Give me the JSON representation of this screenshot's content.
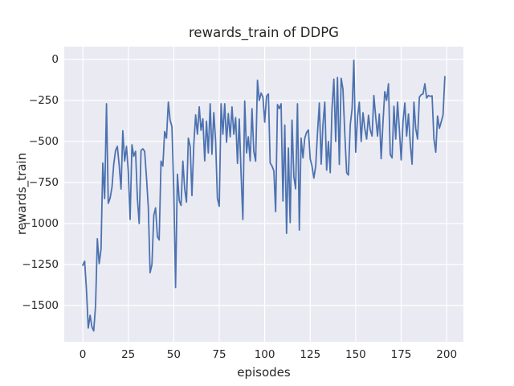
{
  "chart_data": {
    "type": "line",
    "title": "rewards_train of DDPG",
    "xlabel": "episodes",
    "ylabel": "rewards_train",
    "x_start": 0,
    "x_step": 1,
    "values": [
      -1255,
      -1230,
      -1400,
      -1637,
      -1559,
      -1630,
      -1655,
      -1500,
      -1093,
      -1245,
      -1157,
      -632,
      -848,
      -270,
      -877,
      -845,
      -780,
      -640,
      -555,
      -530,
      -645,
      -790,
      -435,
      -620,
      -530,
      -680,
      -975,
      -520,
      -590,
      -560,
      -850,
      -1000,
      -555,
      -545,
      -560,
      -720,
      -905,
      -1300,
      -1250,
      -950,
      -905,
      -1080,
      -1100,
      -620,
      -650,
      -440,
      -480,
      -260,
      -370,
      -410,
      -800,
      -1390,
      -700,
      -860,
      -890,
      -620,
      -790,
      -870,
      -480,
      -530,
      -830,
      -520,
      -338,
      -456,
      -289,
      -432,
      -362,
      -618,
      -377,
      -570,
      -270,
      -578,
      -324,
      -500,
      -846,
      -895,
      -270,
      -456,
      -270,
      -505,
      -330,
      -472,
      -289,
      -456,
      -355,
      -634,
      -363,
      -700,
      -976,
      -254,
      -570,
      -472,
      -618,
      -300,
      -560,
      -620,
      -127,
      -250,
      -205,
      -230,
      -382,
      -225,
      -210,
      -632,
      -650,
      -680,
      -928,
      -275,
      -300,
      -270,
      -863,
      -400,
      -1060,
      -540,
      -995,
      -370,
      -715,
      -789,
      -270,
      -1040,
      -480,
      -600,
      -480,
      -445,
      -430,
      -608,
      -650,
      -723,
      -650,
      -450,
      -265,
      -638,
      -400,
      -260,
      -675,
      -500,
      -690,
      -300,
      -120,
      -500,
      -110,
      -640,
      -115,
      -180,
      -450,
      -690,
      -705,
      -400,
      -300,
      -5,
      -565,
      -350,
      -260,
      -500,
      -325,
      -420,
      -485,
      -340,
      -430,
      -467,
      -220,
      -350,
      -467,
      -333,
      -605,
      -380,
      -196,
      -250,
      -148,
      -580,
      -600,
      -285,
      -485,
      -260,
      -430,
      -612,
      -380,
      -265,
      -467,
      -333,
      -520,
      -638,
      -260,
      -420,
      -485,
      -230,
      -215,
      -210,
      -148,
      -235,
      -220,
      -225,
      -222,
      -485,
      -565,
      -345,
      -420,
      -380,
      -340,
      -105
    ],
    "xticks": {
      "values": [
        0,
        25,
        50,
        75,
        100,
        125,
        150,
        175,
        200
      ],
      "labels": [
        "0",
        "25",
        "50",
        "75",
        "100",
        "125",
        "150",
        "175",
        "200"
      ]
    },
    "yticks": {
      "values": [
        0,
        -250,
        -500,
        -750,
        -1000,
        -1250,
        -1500
      ],
      "labels": [
        "0",
        "−250",
        "−500",
        "−750",
        "−1000",
        "−1250",
        "−1500"
      ]
    },
    "xlim": [
      -10.2,
      209.2
    ],
    "ylim": [
      -1721,
      78
    ],
    "grid": true,
    "legend": "none",
    "colors": {
      "line": "#4c72b0",
      "plot_bg": "#eaeaf2",
      "grid": "#ffffff",
      "text": "#262626",
      "figure_bg": "#ffffff"
    }
  }
}
